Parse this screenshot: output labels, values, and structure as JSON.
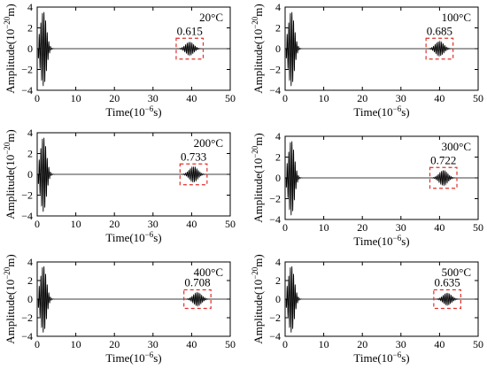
{
  "figure": {
    "sup_exponent_y": "−20",
    "sup_exponent_x": "−6"
  },
  "chart_data": [
    {
      "type": "line",
      "panel_label": "20°C",
      "peak_value": "0.615",
      "peak_amplitude": 0.615,
      "xlabel": "Time(10−6s)",
      "ylabel": "Amplitude(10−20m)",
      "xlim": [
        0,
        50
      ],
      "ylim": [
        -4,
        4
      ],
      "xticks": [
        0,
        10,
        20,
        30,
        40,
        50
      ],
      "yticks": [
        -4,
        -2,
        0,
        2,
        4
      ],
      "wave_center_x": 39.5,
      "first_packet_max": 3.6,
      "line_color": "#000000",
      "box_color": "#e0302a"
    },
    {
      "type": "line",
      "panel_label": "100°C",
      "peak_value": "0.685",
      "peak_amplitude": 0.685,
      "xlabel": "Time(10−6s)",
      "ylabel": "Amplitude(10−20m)",
      "xlim": [
        0,
        50
      ],
      "ylim": [
        -4,
        4
      ],
      "xticks": [
        0,
        10,
        20,
        30,
        40,
        50
      ],
      "yticks": [
        -4,
        -2,
        0,
        2,
        4
      ],
      "wave_center_x": 40.0,
      "first_packet_max": 3.6,
      "line_color": "#000000",
      "box_color": "#e0302a"
    },
    {
      "type": "line",
      "panel_label": "200°C",
      "peak_value": "0.733",
      "peak_amplitude": 0.733,
      "xlabel": "Time(10−6s)",
      "ylabel": "Amplitude(10−20m)",
      "xlim": [
        0,
        50
      ],
      "ylim": [
        -4,
        4
      ],
      "xticks": [
        0,
        10,
        20,
        30,
        40,
        50
      ],
      "yticks": [
        -4,
        -2,
        0,
        2,
        4
      ],
      "wave_center_x": 40.5,
      "first_packet_max": 3.6,
      "line_color": "#000000",
      "box_color": "#e0302a"
    },
    {
      "type": "line",
      "panel_label": "300°C",
      "peak_value": "0.722",
      "peak_amplitude": 0.722,
      "xlabel": "Time(10−6s)",
      "ylabel": "Amplitude(10−20m)",
      "xlim": [
        0,
        50
      ],
      "ylim": [
        -4,
        4
      ],
      "xticks": [
        0,
        10,
        20,
        30,
        40,
        50
      ],
      "yticks": [
        -4,
        -2,
        0,
        2,
        4
      ],
      "wave_center_x": 41.0,
      "first_packet_max": 3.6,
      "line_color": "#000000",
      "box_color": "#e0302a"
    },
    {
      "type": "line",
      "panel_label": "400°C",
      "peak_value": "0.708",
      "peak_amplitude": 0.708,
      "xlabel": "Time(10−6s)",
      "ylabel": "Amplitude(10−20m)",
      "xlim": [
        0,
        50
      ],
      "ylim": [
        -4,
        4
      ],
      "xticks": [
        0,
        10,
        20,
        30,
        40,
        50
      ],
      "yticks": [
        -4,
        -2,
        0,
        2,
        4
      ],
      "wave_center_x": 41.5,
      "first_packet_max": 3.6,
      "line_color": "#000000",
      "box_color": "#e0302a"
    },
    {
      "type": "line",
      "panel_label": "500°C",
      "peak_value": "0.635",
      "peak_amplitude": 0.635,
      "xlabel": "Time(10−6s)",
      "ylabel": "Amplitude(10−20m)",
      "xlim": [
        0,
        50
      ],
      "ylim": [
        -4,
        4
      ],
      "xticks": [
        0,
        10,
        20,
        30,
        40,
        50
      ],
      "yticks": [
        -4,
        -2,
        0,
        2,
        4
      ],
      "wave_center_x": 42.0,
      "first_packet_max": 3.6,
      "line_color": "#000000",
      "box_color": "#e0302a"
    }
  ]
}
